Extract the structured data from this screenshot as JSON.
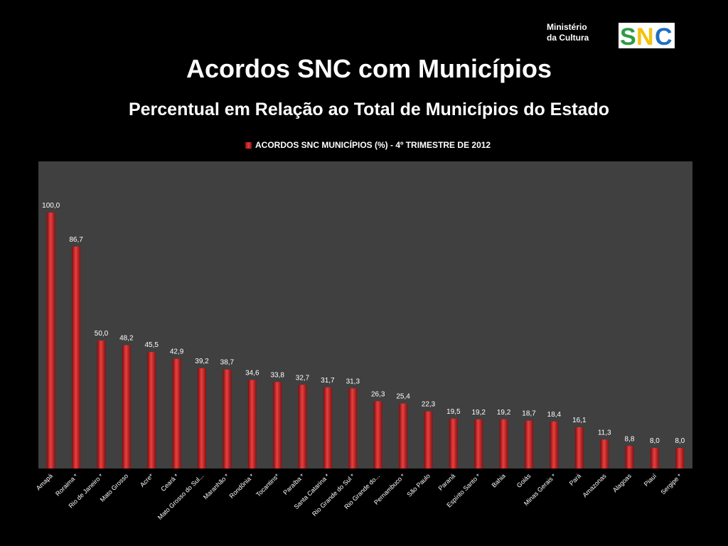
{
  "header": {
    "ministry_line1": "Ministério",
    "ministry_line2": "da Cultura",
    "logo_text": "SNC",
    "title": "Acordos SNC com Municípios",
    "subtitle": "Percentual em Relação ao Total de Municípios do Estado"
  },
  "colors": {
    "background": "#000000",
    "plot_area": "#404040",
    "bar": "#d42a2c",
    "logo_green": "#2e9b45",
    "logo_yellow": "#f4c20d",
    "logo_blue": "#1f6fc1"
  },
  "chart_data": {
    "type": "bar",
    "title": "",
    "xlabel": "",
    "ylabel": "",
    "ylim": [
      0,
      120
    ],
    "grid": false,
    "legend_position": "top",
    "categories": [
      "Amapá",
      "Roraima *",
      "Rio de Janeiro *",
      "Mato Grosso",
      "Acre*",
      "Ceará *",
      "Mato Grosso do Sul...",
      "Maranhão *",
      "Rondônia *",
      "Tocantins*",
      "Paraíba *",
      "Santa Catarina *",
      "Rio Grande do Sul *",
      "Rio Grande do...",
      "Pernambuco *",
      "São Paulo",
      "Paraná",
      "Espírito Santo *",
      "Bahia",
      "Goiás",
      "Minas Gerais *",
      "Pará",
      "Amazonas",
      "Alagoas",
      "Piauí",
      "Sergipe *"
    ],
    "series": [
      {
        "name": "ACORDOS SNC MUNICÍPIOS (%) - 4º TRIMESTRE DE 2012",
        "values": [
          100.0,
          86.7,
          50.0,
          48.2,
          45.5,
          42.9,
          39.2,
          38.7,
          34.6,
          33.8,
          32.7,
          31.7,
          31.3,
          26.3,
          25.4,
          22.3,
          19.5,
          19.2,
          19.2,
          18.7,
          18.4,
          16.1,
          11.3,
          8.8,
          8.0,
          8.0
        ],
        "labels": [
          "100,0",
          "86,7",
          "50,0",
          "48,2",
          "45,5",
          "42,9",
          "39,2",
          "38,7",
          "34,6",
          "33,8",
          "32,7",
          "31,7",
          "31,3",
          "26,3",
          "25,4",
          "22,3",
          "19,5",
          "19,2",
          "19,2",
          "18,7",
          "18,4",
          "16,1",
          "11,3",
          "8,8",
          "8,0",
          "8,0"
        ]
      }
    ]
  }
}
